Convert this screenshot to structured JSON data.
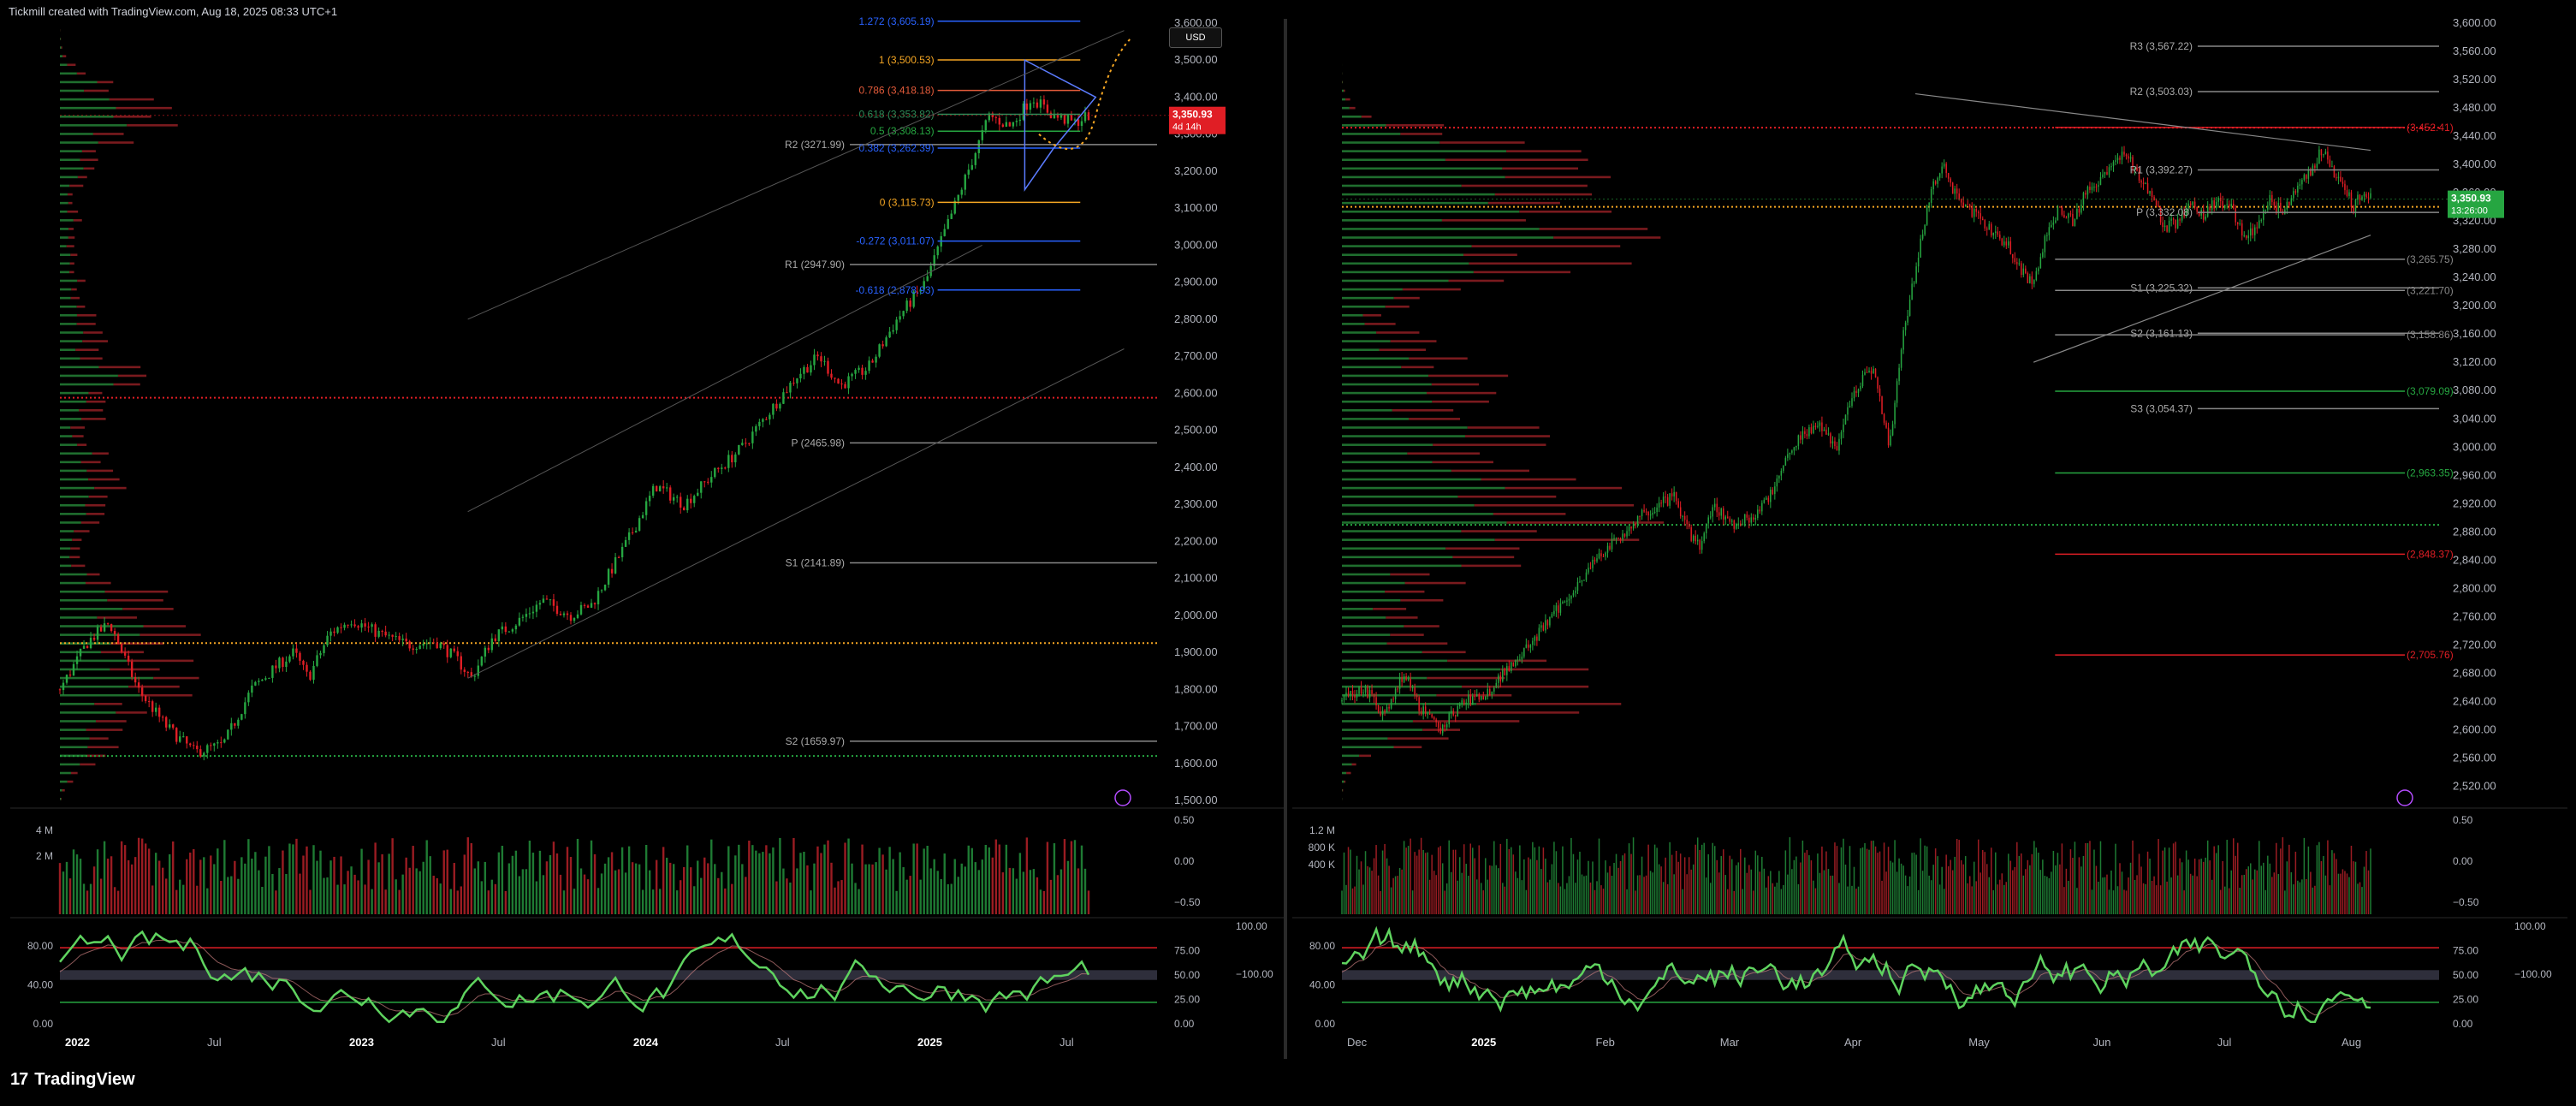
{
  "header": {
    "attribution": "Tickmill created with TradingView.com, Aug 18, 2025 08:33 UTC+1"
  },
  "footer": {
    "brand": "TradingView",
    "logo": "17"
  },
  "currency_label": "USD",
  "colors": {
    "bg": "#000000",
    "up": "#26a641",
    "down": "#e01e25",
    "grid": "#1e1e1e",
    "fib_blue": "#2962ff",
    "fib_orange": "#f5a623",
    "pivot": "#bbbbbb"
  },
  "chart_data": [
    {
      "type": "candlestick",
      "name_hint": "weekly",
      "x_ticks": [
        "2022",
        "Jul",
        "2023",
        "Jul",
        "2024",
        "Jul",
        "2025",
        "Jul"
      ],
      "x_tick_bold": [
        true,
        false,
        true,
        false,
        true,
        false,
        true,
        false
      ],
      "y_ticks": [
        "3,600.00",
        "3,500.00",
        "3,400.00",
        "3,300.00",
        "3,200.00",
        "3,100.00",
        "3,000.00",
        "2,900.00",
        "2,800.00",
        "2,700.00",
        "2,600.00",
        "2,500.00",
        "2,400.00",
        "2,300.00",
        "2,200.00",
        "2,100.00",
        "2,000.00",
        "1,900.00",
        "1,800.00",
        "1,700.00",
        "1,600.00",
        "1,500.00"
      ],
      "ylim": [
        1500,
        3600
      ],
      "price_tag": {
        "value": "3,350.93",
        "sub": "4d 14h"
      },
      "series_path": [
        [
          0,
          1800
        ],
        [
          8,
          1930
        ],
        [
          14,
          1980
        ],
        [
          22,
          1800
        ],
        [
          30,
          1700
        ],
        [
          38,
          1630
        ],
        [
          46,
          1650
        ],
        [
          54,
          1800
        ],
        [
          62,
          1870
        ],
        [
          66,
          1900
        ],
        [
          70,
          1830
        ],
        [
          76,
          1950
        ],
        [
          82,
          1990
        ],
        [
          90,
          1950
        ],
        [
          98,
          1920
        ],
        [
          106,
          1930
        ],
        [
          112,
          1880
        ],
        [
          116,
          1830
        ],
        [
          122,
          1940
        ],
        [
          130,
          1990
        ],
        [
          136,
          2040
        ],
        [
          144,
          2000
        ],
        [
          150,
          2030
        ],
        [
          160,
          2200
        ],
        [
          168,
          2350
        ],
        [
          176,
          2300
        ],
        [
          184,
          2380
        ],
        [
          192,
          2450
        ],
        [
          200,
          2550
        ],
        [
          208,
          2650
        ],
        [
          214,
          2700
        ],
        [
          220,
          2620
        ],
        [
          228,
          2670
        ],
        [
          236,
          2800
        ],
        [
          244,
          2900
        ],
        [
          250,
          3050
        ],
        [
          256,
          3200
        ],
        [
          262,
          3350
        ],
        [
          268,
          3320
        ],
        [
          274,
          3400
        ],
        [
          280,
          3350
        ],
        [
          286,
          3330
        ],
        [
          290,
          3351
        ]
      ],
      "fib_levels": [
        {
          "label": "1.272 (3,605.19)",
          "value": 3605.19,
          "color": "#2962ff"
        },
        {
          "label": "1 (3,500.53)",
          "value": 3500.53,
          "color": "#f5a623"
        },
        {
          "label": "0.786 (3,418.18)",
          "value": 3418.18,
          "color": "#e35b3a"
        },
        {
          "label": "0.618 (3,353.82)",
          "value": 3353.82,
          "color": "#2e8b57"
        },
        {
          "label": "0.5 (3,308.13)",
          "value": 3308.13,
          "color": "#26a641"
        },
        {
          "label": "0.382 (3,262.39)",
          "value": 3262.39,
          "color": "#2962ff"
        },
        {
          "label": "0 (3,115.73)",
          "value": 3115.73,
          "color": "#f5a623"
        },
        {
          "label": "-0.272 (3,011.07)",
          "value": 3011.07,
          "color": "#2962ff"
        },
        {
          "label": "-0.618 (2,878.93)",
          "value": 2878.93,
          "color": "#2962ff"
        }
      ],
      "pivots": [
        {
          "label": "R2 (3271.99)",
          "value": 3271.99
        },
        {
          "label": "R1 (2947.90)",
          "value": 2947.9
        },
        {
          "label": "P (2465.98)",
          "value": 2465.98
        },
        {
          "label": "S1 (2141.89)",
          "value": 2141.89
        },
        {
          "label": "S2 (1659.97)",
          "value": 1659.97
        }
      ],
      "dotted_levels": [
        {
          "value": 2588,
          "color": "#e01e25"
        },
        {
          "value": 1925,
          "color": "#f5a623"
        },
        {
          "value": 1620,
          "color": "#26a641"
        }
      ],
      "volume": {
        "y_ticks": [
          "4 M",
          "2 M"
        ],
        "right_ticks": [
          "0.50",
          "0.00",
          "−0.50"
        ]
      },
      "oscillator": {
        "left_ticks": [
          "80.00",
          "40.00",
          "0.00"
        ],
        "right_ticks": [
          "75.00",
          "50.00",
          "25.00",
          "0.00"
        ],
        "far_right_ticks": [
          "100.00",
          "−100.00"
        ]
      }
    },
    {
      "type": "candlestick",
      "name_hint": "daily",
      "x_ticks": [
        "Dec",
        "2025",
        "Feb",
        "Mar",
        "Apr",
        "May",
        "Jun",
        "Jul",
        "Aug"
      ],
      "x_tick_bold": [
        false,
        true,
        false,
        false,
        false,
        false,
        false,
        false,
        false
      ],
      "y_ticks": [
        "3,600.00",
        "3,560.00",
        "3,520.00",
        "3,480.00",
        "3,440.00",
        "3,400.00",
        "3,360.00",
        "3,320.00",
        "3,280.00",
        "3,240.00",
        "3,200.00",
        "3,160.00",
        "3,120.00",
        "3,080.00",
        "3,040.00",
        "3,000.00",
        "2,960.00",
        "2,920.00",
        "2,880.00",
        "2,840.00",
        "2,800.00",
        "2,760.00",
        "2,720.00",
        "2,680.00",
        "2,640.00",
        "2,600.00",
        "2,560.00",
        "2,520.00"
      ],
      "ylim": [
        2500,
        3600
      ],
      "price_tag": {
        "value": "3,350.93",
        "sub": "13:26:00"
      },
      "series_path": [
        [
          0,
          2640
        ],
        [
          10,
          2660
        ],
        [
          20,
          2620
        ],
        [
          28,
          2680
        ],
        [
          36,
          2630
        ],
        [
          44,
          2600
        ],
        [
          56,
          2640
        ],
        [
          66,
          2650
        ],
        [
          76,
          2690
        ],
        [
          86,
          2720
        ],
        [
          96,
          2760
        ],
        [
          106,
          2800
        ],
        [
          116,
          2840
        ],
        [
          126,
          2870
        ],
        [
          136,
          2900
        ],
        [
          146,
          2920
        ],
        [
          152,
          2930
        ],
        [
          158,
          2880
        ],
        [
          164,
          2860
        ],
        [
          170,
          2920
        ],
        [
          178,
          2890
        ],
        [
          186,
          2900
        ],
        [
          194,
          2920
        ],
        [
          202,
          2980
        ],
        [
          210,
          3020
        ],
        [
          218,
          3030
        ],
        [
          226,
          3000
        ],
        [
          234,
          3080
        ],
        [
          240,
          3110
        ],
        [
          244,
          3100
        ],
        [
          250,
          3000
        ],
        [
          256,
          3150
        ],
        [
          262,
          3250
        ],
        [
          268,
          3350
        ],
        [
          274,
          3400
        ],
        [
          280,
          3360
        ],
        [
          286,
          3340
        ],
        [
          292,
          3320
        ],
        [
          298,
          3300
        ],
        [
          304,
          3290
        ],
        [
          310,
          3250
        ],
        [
          316,
          3230
        ],
        [
          322,
          3300
        ],
        [
          328,
          3340
        ],
        [
          334,
          3320
        ],
        [
          340,
          3360
        ],
        [
          346,
          3380
        ],
        [
          352,
          3400
        ],
        [
          358,
          3420
        ],
        [
          364,
          3380
        ],
        [
          370,
          3360
        ],
        [
          376,
          3310
        ],
        [
          382,
          3320
        ],
        [
          388,
          3340
        ],
        [
          394,
          3330
        ],
        [
          400,
          3350
        ],
        [
          406,
          3340
        ],
        [
          412,
          3300
        ],
        [
          418,
          3310
        ],
        [
          424,
          3350
        ],
        [
          430,
          3330
        ],
        [
          436,
          3360
        ],
        [
          442,
          3390
        ],
        [
          448,
          3420
        ],
        [
          454,
          3380
        ],
        [
          458,
          3370
        ],
        [
          462,
          3340
        ],
        [
          466,
          3360
        ],
        [
          470,
          3351
        ]
      ],
      "pivots": [
        {
          "label": "R3 (3,567.22)",
          "value": 3567.22
        },
        {
          "label": "R2 (3,503.03)",
          "value": 3503.03
        },
        {
          "label": "R1 (3,392.27)",
          "value": 3392.27
        },
        {
          "label": "P (3,332.08)",
          "value": 3332.08
        },
        {
          "label": "S1 (3,225.32)",
          "value": 3225.32
        },
        {
          "label": "S2 (3,161.13)",
          "value": 3161.13
        },
        {
          "label": "S3 (3,054.37)",
          "value": 3054.37
        }
      ],
      "levels": [
        {
          "label": "(3,452.41)",
          "value": 3452.41,
          "color": "#e01e25"
        },
        {
          "label": "(3,265.75)",
          "value": 3265.75,
          "color": "#888888"
        },
        {
          "label": "(3,221.70)",
          "value": 3221.7,
          "color": "#888888"
        },
        {
          "label": "(3,158.86)",
          "value": 3158.86,
          "color": "#888888"
        },
        {
          "label": "(3,079.09)",
          "value": 3079.09,
          "color": "#26a641"
        },
        {
          "label": "(2,963.35)",
          "value": 2963.35,
          "color": "#26a641"
        },
        {
          "label": "(2,848.37)",
          "value": 2848.37,
          "color": "#e01e25"
        },
        {
          "label": "(2,705.76)",
          "value": 2705.76,
          "color": "#e01e25"
        }
      ],
      "dotted_levels": [
        {
          "value": 3452,
          "color": "#e01e25"
        },
        {
          "value": 3340,
          "color": "#f5a623"
        },
        {
          "value": 2890,
          "color": "#26a641"
        }
      ],
      "volume": {
        "y_ticks": [
          "1.2 M",
          "800 K",
          "400 K"
        ],
        "right_ticks": [
          "0.50",
          "0.00",
          "−0.50"
        ]
      },
      "oscillator": {
        "left_ticks": [
          "80.00",
          "40.00",
          "0.00"
        ],
        "right_ticks": [
          "75.00",
          "50.00",
          "25.00",
          "0.00"
        ],
        "far_right_ticks": [
          "100.00",
          "−100.00"
        ]
      }
    }
  ]
}
